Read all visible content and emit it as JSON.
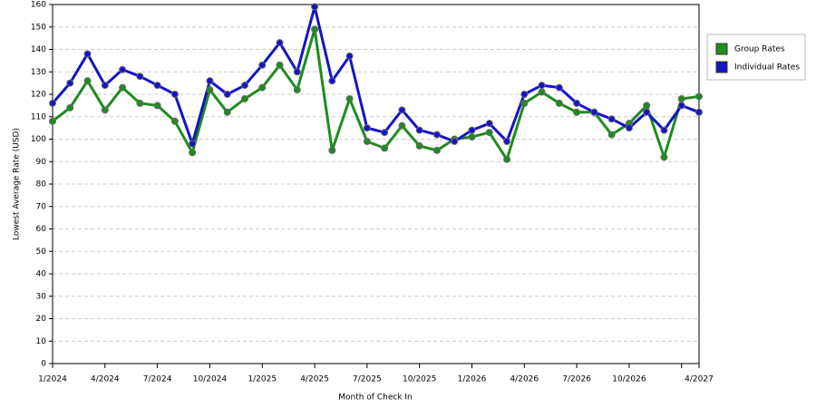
{
  "chart_data": {
    "type": "line",
    "x_label": "Month of Check In",
    "y_label": "Lowest Average Rate (USD)",
    "categories": [
      "1/2024",
      null,
      null,
      "4/2024",
      null,
      null,
      "7/2024",
      null,
      null,
      "10/2024",
      null,
      null,
      "1/2025",
      null,
      null,
      "4/2025",
      null,
      null,
      "7/2025",
      null,
      null,
      "10/2025",
      null,
      null,
      "1/2026",
      null,
      null,
      "4/2026",
      null,
      null,
      "7/2026",
      null,
      null,
      "10/2026",
      null,
      null,
      null,
      "4/2027"
    ],
    "series": [
      {
        "name": "Group Rates",
        "color": "#1e8c1e",
        "values": [
          108,
          114,
          126,
          113,
          123,
          116,
          115,
          108,
          94,
          122,
          112,
          118,
          123,
          133,
          122,
          149,
          95,
          118,
          99,
          96,
          106,
          97,
          95,
          100,
          101,
          103,
          91,
          116,
          121,
          116,
          112,
          112,
          102,
          107,
          115,
          92,
          118,
          119
        ]
      },
      {
        "name": "Individual Rates",
        "color": "#1414c8",
        "values": [
          116,
          125,
          138,
          124,
          131,
          128,
          124,
          120,
          98,
          126,
          120,
          124,
          133,
          143,
          130,
          159,
          126,
          137,
          105,
          103,
          113,
          104,
          102,
          99,
          104,
          107,
          99,
          120,
          124,
          123,
          116,
          112,
          109,
          105,
          112,
          104,
          115,
          112
        ]
      }
    ],
    "ylim": [
      0,
      160
    ],
    "yticks": [
      0,
      10,
      20,
      30,
      40,
      50,
      60,
      70,
      80,
      90,
      100,
      110,
      120,
      130,
      140,
      150,
      160
    ],
    "grid": true,
    "legend": "right"
  }
}
